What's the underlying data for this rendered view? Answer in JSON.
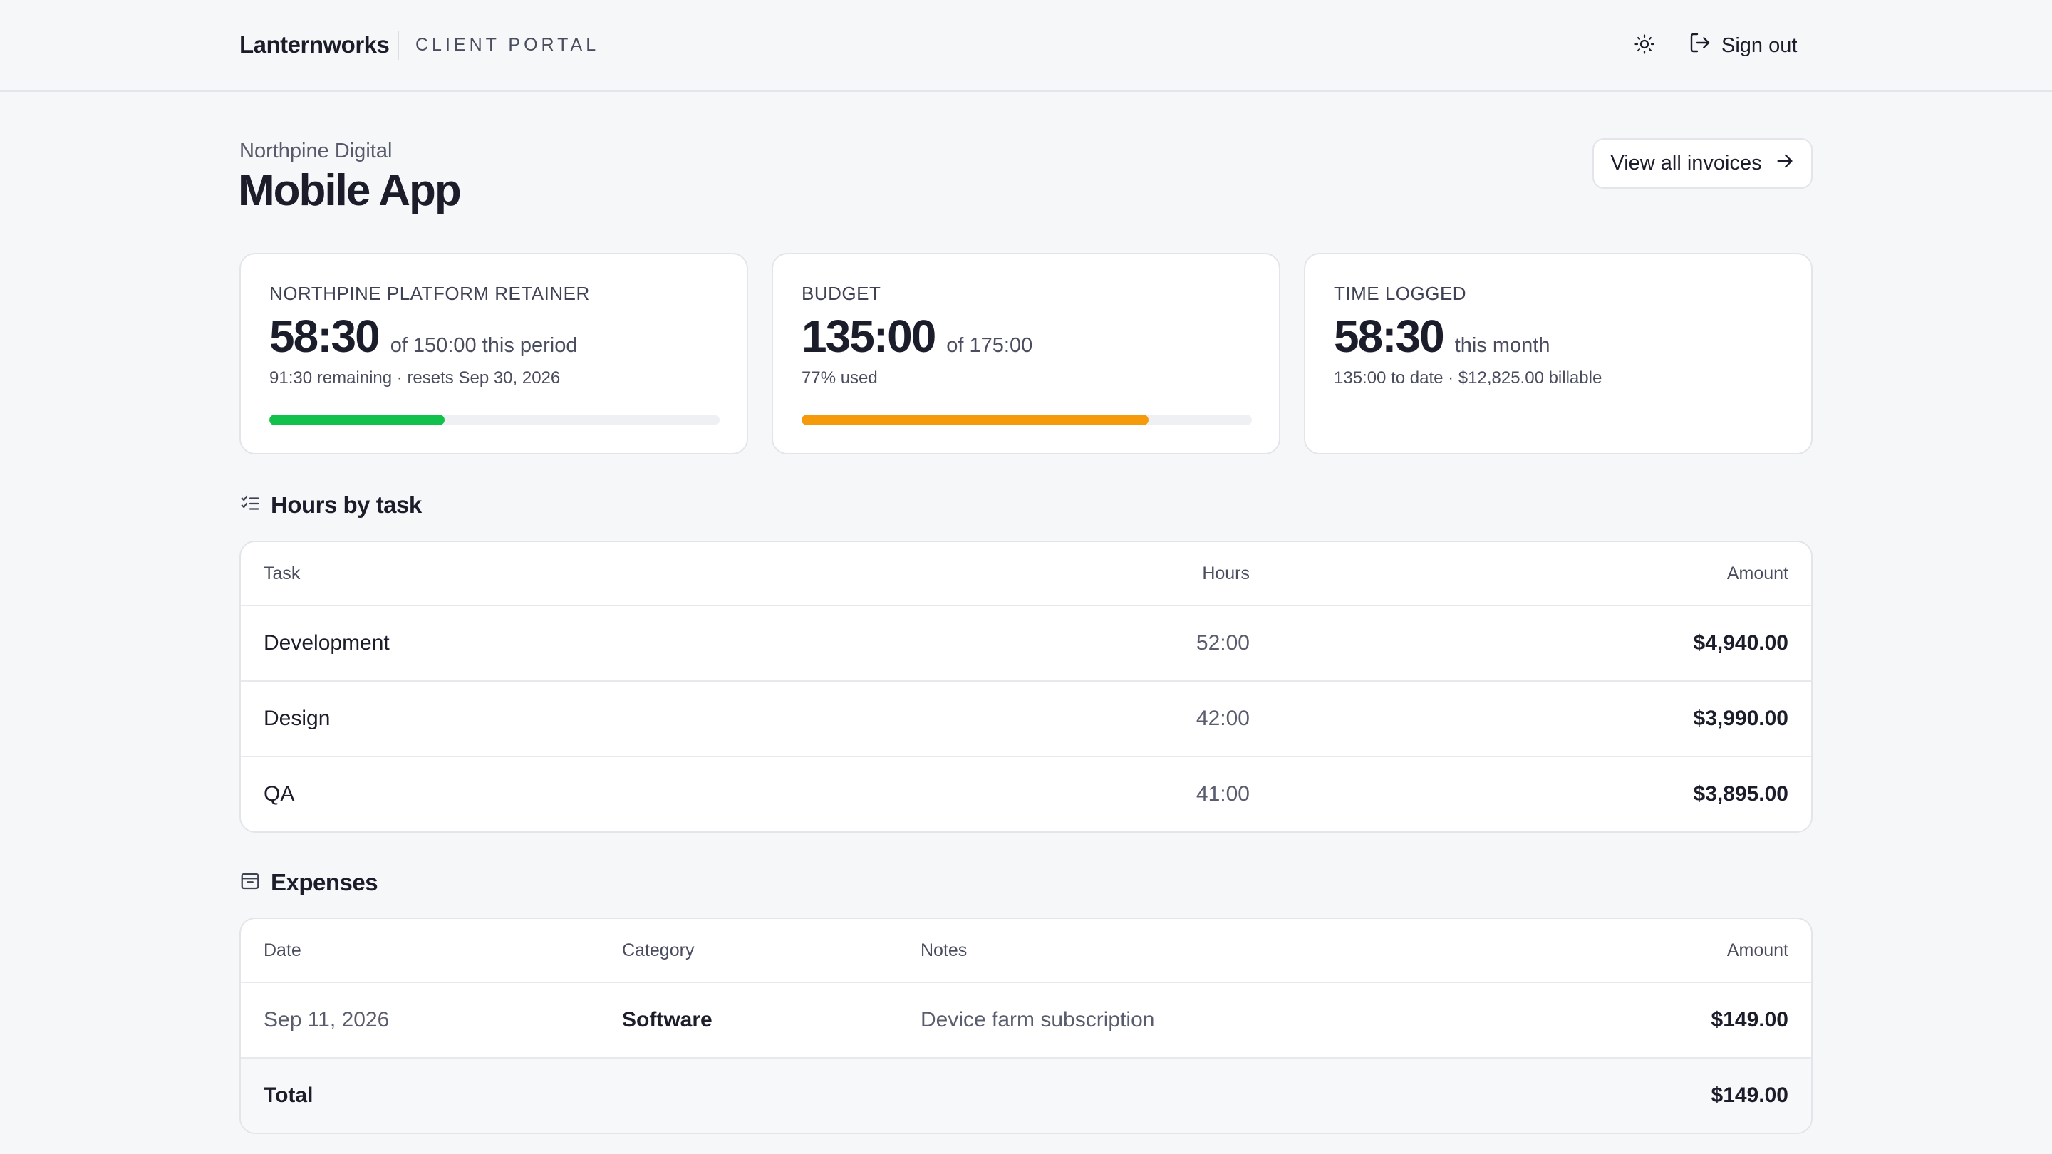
{
  "app": {
    "brand": "Lanternworks",
    "portal_label": "CLIENT PORTAL",
    "sign_out_label": "Sign out"
  },
  "page": {
    "client_name": "Northpine Digital",
    "project_title": "Mobile App",
    "view_invoices_label": "View all invoices"
  },
  "cards": {
    "retainer": {
      "label": "NORTHPINE PLATFORM RETAINER",
      "value": "58:30",
      "suffix": "of 150:00 this period",
      "sub": "91:30 remaining · resets Sep 30, 2026",
      "progress": 0.39,
      "color": "#12c14c"
    },
    "budget": {
      "label": "BUDGET",
      "value": "135:00",
      "suffix": "of 175:00",
      "sub": "77% used",
      "progress": 0.77,
      "color": "#f59a0b"
    },
    "time_logged": {
      "label": "TIME LOGGED",
      "value": "58:30",
      "suffix": "this month",
      "sub": "135:00 to date · $12,825.00 billable"
    }
  },
  "hours_by_task": {
    "title": "Hours by task",
    "columns": {
      "task": "Task",
      "hours": "Hours",
      "amount": "Amount"
    },
    "rows": [
      {
        "task": "Development",
        "hours": "52:00",
        "amount": "$4,940.00"
      },
      {
        "task": "Design",
        "hours": "42:00",
        "amount": "$3,990.00"
      },
      {
        "task": "QA",
        "hours": "41:00",
        "amount": "$3,895.00"
      }
    ]
  },
  "expenses": {
    "title": "Expenses",
    "columns": {
      "date": "Date",
      "category": "Category",
      "notes": "Notes",
      "amount": "Amount"
    },
    "rows": [
      {
        "date": "Sep 11, 2026",
        "category": "Software",
        "notes": "Device farm subscription",
        "amount": "$149.00"
      }
    ],
    "total_label": "Total",
    "total_amount": "$149.00"
  }
}
